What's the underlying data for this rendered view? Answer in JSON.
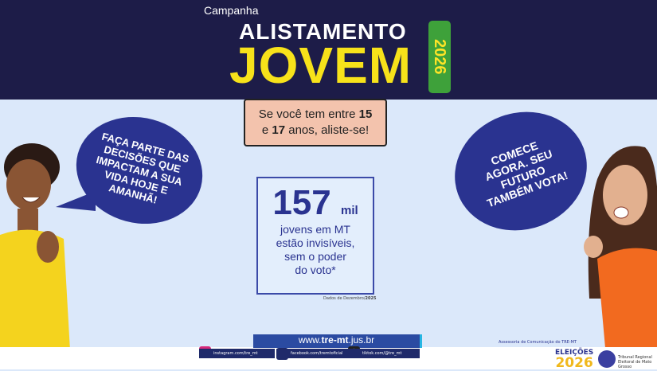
{
  "header": {
    "campaign": "Campanha",
    "line1": "ALISTAMENTO",
    "line2": "JOVEM",
    "year": "2026"
  },
  "banner": {
    "text_a": "Se você tem entre ",
    "n1": "15",
    "text_b": "e ",
    "n2": "17",
    "text_c": " anos, aliste-se!"
  },
  "left_bubble": "FAÇA PARTE DAS DECISÕES QUE IMPACTAM A SUA VIDA HOJE E AMANHÃ!",
  "right_bubble": "COMECE AGORA. SEU FUTURO TAMBÉM VOTA!",
  "stat": {
    "number": "157",
    "unit": "mil",
    "line1": "jovens em MT",
    "line2": "estão invisíveis,",
    "line3": "sem o poder",
    "line4": "do voto*",
    "source_prefix": "Dados de Dezembro/",
    "source_year": "2025"
  },
  "url": {
    "prefix": "www.",
    "bold": "tre-mt",
    "suffix": ".jus.br"
  },
  "credit": "Assessoria de Comunicação do TRE-MT",
  "social": [
    {
      "icon": "instagram-icon",
      "label": "instagram.com/tre_mt"
    },
    {
      "icon": "facebook-icon",
      "label": "facebook.com/tremtoficial"
    },
    {
      "icon": "tiktok-icon",
      "label": "tiktok.com/@tre_mt"
    }
  ],
  "logos": {
    "elections_word": "ELEIÇÕES",
    "elections_year": "2026",
    "tre": "Tribunal Regional Eleitoral de Mato Grosso"
  },
  "colors": {
    "navy": "#1d1c48",
    "yellow": "#f7e21a",
    "green": "#3ea13a",
    "bubble": "#2a3390",
    "background": "#dbe8fa"
  }
}
